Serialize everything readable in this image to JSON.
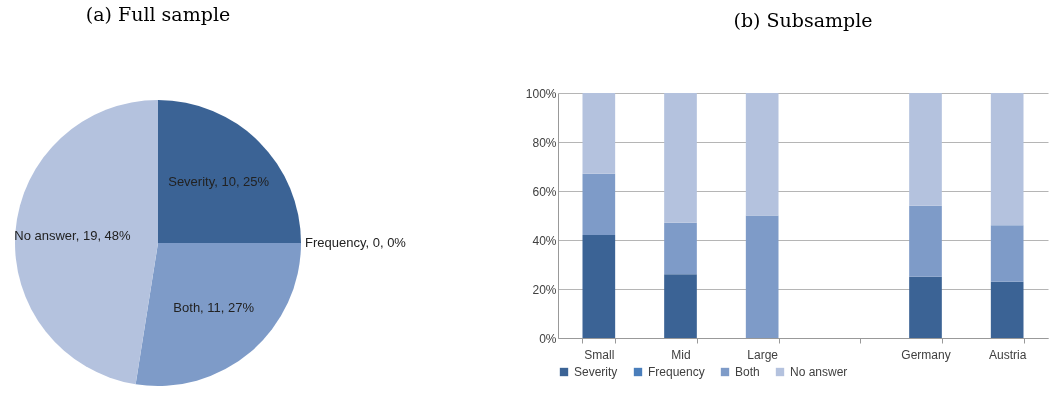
{
  "chart_data": [
    {
      "type": "pie",
      "title": "(a) Full sample",
      "categories": [
        "Severity",
        "Frequency",
        "Both",
        "No answer"
      ],
      "values": [
        10,
        0,
        11,
        19
      ],
      "colors": [
        "#3b6395",
        "#4a7ebb",
        "#7e9bc8",
        "#b4c2de"
      ],
      "value_labels": [
        ", 10, 25%",
        ", 0, 0%",
        ", 11, 27%",
        ", 19, 48%"
      ]
    },
    {
      "type": "bar",
      "title": "(b) Subsample",
      "stacked": true,
      "categories": [
        "Small",
        "Mid",
        "Large",
        null,
        "Germany",
        "Austria"
      ],
      "series": [
        {
          "name": "Severity",
          "color": "#3b6395",
          "values": [
            42,
            26,
            0,
            null,
            25,
            23
          ]
        },
        {
          "name": "Frequency",
          "color": "#4a7ebb",
          "values": [
            0,
            0,
            0,
            null,
            0,
            0
          ]
        },
        {
          "name": "Both",
          "color": "#7e9bc8",
          "values": [
            25,
            21,
            50,
            null,
            29,
            23
          ]
        },
        {
          "name": "No answer",
          "color": "#b4c2de",
          "values": [
            33,
            53,
            50,
            null,
            46,
            54
          ]
        }
      ],
      "ylim": [
        0,
        100
      ],
      "yticks": [
        {
          "value": 0,
          "label": "0%"
        },
        {
          "value": 20,
          "label": "20%"
        },
        {
          "value": 40,
          "label": "40%"
        },
        {
          "value": 60,
          "label": "60%"
        },
        {
          "value": 80,
          "label": "80%"
        },
        {
          "value": 100,
          "label": "100%"
        }
      ],
      "grid": "y",
      "legend": "bottom"
    }
  ]
}
